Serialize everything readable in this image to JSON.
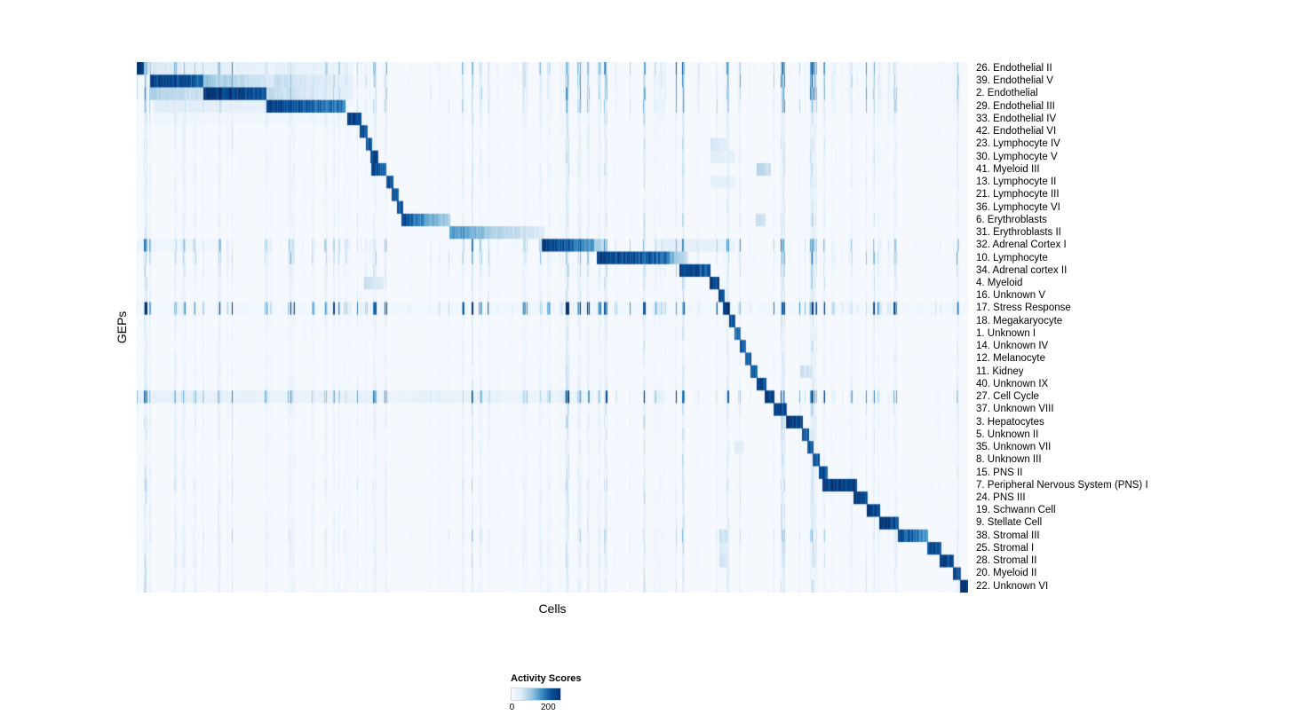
{
  "chart_data": {
    "type": "heatmap",
    "title": "",
    "xlabel": "Cells",
    "ylabel": "GEPs",
    "grid": false,
    "colormap": "Blues",
    "colormap_stops": [
      [
        0.0,
        "#f7fbff"
      ],
      [
        0.2,
        "#deebf7"
      ],
      [
        0.4,
        "#9ecae1"
      ],
      [
        0.6,
        "#4292c6"
      ],
      [
        0.8,
        "#08519c"
      ],
      [
        1.0,
        "#08306b"
      ]
    ],
    "value_range": [
      0,
      200
    ],
    "legend": {
      "title": "Activity Scores",
      "ticks": [
        "0",
        "200"
      ]
    },
    "rows": [
      {
        "label": "26.  Endothelial II",
        "noise": 0.35,
        "segments": [
          [
            0.0,
            0.008,
            1.0,
            0.95
          ],
          [
            0.012,
            0.09,
            0.22,
            0.12
          ],
          [
            0.09,
            0.165,
            0.15,
            0.1
          ],
          [
            0.165,
            0.26,
            0.14,
            0.08
          ]
        ]
      },
      {
        "label": "39.  Endothelial V",
        "noise": 0.3,
        "segments": [
          [
            0.015,
            0.08,
            0.9,
            0.75
          ],
          [
            0.08,
            0.165,
            0.4,
            0.2
          ],
          [
            0.165,
            0.26,
            0.28,
            0.12
          ]
        ]
      },
      {
        "label": "2.  Endothelial",
        "noise": 0.3,
        "segments": [
          [
            0.015,
            0.08,
            0.35,
            0.25
          ],
          [
            0.08,
            0.155,
            0.95,
            0.8
          ],
          [
            0.155,
            0.26,
            0.3,
            0.12
          ]
        ]
      },
      {
        "label": "29.  Endothelial III",
        "noise": 0.25,
        "segments": [
          [
            0.02,
            0.155,
            0.18,
            0.12
          ],
          [
            0.155,
            0.25,
            0.9,
            0.65
          ]
        ]
      },
      {
        "label": "33.  Endothelial IV",
        "noise": 0.15,
        "segments": [
          [
            0.02,
            0.25,
            0.07,
            0.05
          ],
          [
            0.253,
            0.27,
            0.9,
            0.85
          ]
        ]
      },
      {
        "label": "42.  Endothelial VI",
        "noise": 0.12,
        "segments": [
          [
            0.268,
            0.277,
            0.85,
            0.8
          ]
        ]
      },
      {
        "label": "23.  Lymphocyte IV",
        "noise": 0.12,
        "segments": [
          [
            0.275,
            0.283,
            0.8,
            0.75
          ],
          [
            0.69,
            0.712,
            0.22,
            0.15
          ]
        ]
      },
      {
        "label": "30.  Lymphocyte V",
        "noise": 0.12,
        "segments": [
          [
            0.28,
            0.29,
            0.85,
            0.8
          ],
          [
            0.69,
            0.72,
            0.18,
            0.12
          ]
        ]
      },
      {
        "label": "41.  Myeloid III",
        "noise": 0.14,
        "segments": [
          [
            0.282,
            0.3,
            0.88,
            0.65
          ],
          [
            0.745,
            0.762,
            0.35,
            0.25
          ]
        ]
      },
      {
        "label": "13.  Lymphocyte II",
        "noise": 0.12,
        "segments": [
          [
            0.3,
            0.308,
            0.85,
            0.8
          ],
          [
            0.69,
            0.72,
            0.15,
            0.1
          ]
        ]
      },
      {
        "label": "21.  Lymphocyte III",
        "noise": 0.1,
        "segments": [
          [
            0.306,
            0.315,
            0.8,
            0.75
          ]
        ]
      },
      {
        "label": "36.  Lymphocyte VI",
        "noise": 0.1,
        "segments": [
          [
            0.313,
            0.32,
            0.8,
            0.78
          ]
        ]
      },
      {
        "label": "6.  Erythroblasts",
        "noise": 0.12,
        "segments": [
          [
            0.318,
            0.345,
            0.85,
            0.6
          ],
          [
            0.345,
            0.377,
            0.55,
            0.35
          ],
          [
            0.744,
            0.756,
            0.3,
            0.22
          ]
        ]
      },
      {
        "label": "31.  Erythroblasts II",
        "noise": 0.1,
        "segments": [
          [
            0.376,
            0.43,
            0.6,
            0.35
          ],
          [
            0.43,
            0.49,
            0.35,
            0.18
          ]
        ]
      },
      {
        "label": "32.  Adrenal Cortex I",
        "noise": 0.35,
        "segments": [
          [
            0.487,
            0.55,
            0.92,
            0.55
          ],
          [
            0.55,
            0.565,
            0.4,
            0.25
          ],
          [
            0.63,
            0.72,
            0.18,
            0.1
          ],
          [
            0.0,
            0.1,
            0.08,
            0.06
          ]
        ]
      },
      {
        "label": "10.  Lymphocyte",
        "noise": 0.3,
        "segments": [
          [
            0.553,
            0.64,
            0.92,
            0.7
          ],
          [
            0.64,
            0.663,
            0.5,
            0.25
          ]
        ]
      },
      {
        "label": "34.  Adrenal cortex II",
        "noise": 0.18,
        "segments": [
          [
            0.652,
            0.69,
            0.92,
            0.75
          ]
        ]
      },
      {
        "label": "4.  Myeloid",
        "noise": 0.14,
        "segments": [
          [
            0.689,
            0.7,
            0.9,
            0.85
          ],
          [
            0.273,
            0.297,
            0.28,
            0.18
          ]
        ]
      },
      {
        "label": "16.  Unknown V",
        "noise": 0.12,
        "segments": [
          [
            0.699,
            0.707,
            0.85,
            0.8
          ]
        ]
      },
      {
        "label": "17.  Stress Response",
        "noise": 0.65,
        "segments": [
          [
            0.0,
            1.0,
            0.05,
            0.05
          ],
          [
            0.705,
            0.713,
            0.95,
            0.9
          ]
        ]
      },
      {
        "label": "18.  Megakaryocyte",
        "noise": 0.12,
        "segments": [
          [
            0.712,
            0.72,
            0.8,
            0.78
          ]
        ]
      },
      {
        "label": "1.  Unknown I",
        "noise": 0.1,
        "segments": [
          [
            0.719,
            0.726,
            0.72,
            0.7
          ]
        ]
      },
      {
        "label": "14.  Unknown IV",
        "noise": 0.1,
        "segments": [
          [
            0.725,
            0.732,
            0.75,
            0.72
          ]
        ]
      },
      {
        "label": "12.  Melanocyte",
        "noise": 0.1,
        "segments": [
          [
            0.731,
            0.739,
            0.8,
            0.76
          ]
        ]
      },
      {
        "label": "11.  Kidney",
        "noise": 0.1,
        "segments": [
          [
            0.738,
            0.746,
            0.8,
            0.76
          ],
          [
            0.798,
            0.812,
            0.28,
            0.2
          ]
        ]
      },
      {
        "label": "40.  Unknown IX",
        "noise": 0.12,
        "segments": [
          [
            0.745,
            0.757,
            0.85,
            0.8
          ]
        ]
      },
      {
        "label": "27.  Cell Cycle",
        "noise": 0.45,
        "segments": [
          [
            0.755,
            0.767,
            0.9,
            0.85
          ],
          [
            0.0,
            0.33,
            0.13,
            0.1
          ],
          [
            0.33,
            0.55,
            0.12,
            0.08
          ]
        ]
      },
      {
        "label": "37.  Unknown VIII",
        "noise": 0.13,
        "segments": [
          [
            0.766,
            0.781,
            0.9,
            0.82
          ]
        ]
      },
      {
        "label": "3.  Hepatocytes",
        "noise": 0.13,
        "segments": [
          [
            0.78,
            0.801,
            0.93,
            0.82
          ]
        ]
      },
      {
        "label": "5.  Unknown II",
        "noise": 0.11,
        "segments": [
          [
            0.8,
            0.808,
            0.8,
            0.76
          ]
        ]
      },
      {
        "label": "35.  Unknown VII",
        "noise": 0.11,
        "segments": [
          [
            0.806,
            0.814,
            0.8,
            0.76
          ],
          [
            0.718,
            0.73,
            0.22,
            0.15
          ]
        ]
      },
      {
        "label": "8.  Unknown III",
        "noise": 0.11,
        "segments": [
          [
            0.813,
            0.821,
            0.8,
            0.76
          ]
        ]
      },
      {
        "label": "15.  PNS II",
        "noise": 0.11,
        "segments": [
          [
            0.82,
            0.831,
            0.85,
            0.8
          ]
        ]
      },
      {
        "label": "7.  Peripheral Nervous System (PNS) I",
        "noise": 0.14,
        "segments": [
          [
            0.824,
            0.866,
            0.95,
            0.85
          ]
        ]
      },
      {
        "label": "24.  PNS III",
        "noise": 0.12,
        "segments": [
          [
            0.862,
            0.879,
            0.9,
            0.82
          ]
        ]
      },
      {
        "label": "19.  Schwann Cell",
        "noise": 0.12,
        "segments": [
          [
            0.878,
            0.894,
            0.9,
            0.82
          ]
        ]
      },
      {
        "label": "9.  Stellate Cell",
        "noise": 0.12,
        "segments": [
          [
            0.893,
            0.916,
            0.93,
            0.8
          ]
        ]
      },
      {
        "label": "38.  Stromal III",
        "noise": 0.18,
        "segments": [
          [
            0.915,
            0.951,
            0.88,
            0.55
          ],
          [
            0.7,
            0.712,
            0.28,
            0.2
          ]
        ]
      },
      {
        "label": "25.  Stromal I",
        "noise": 0.14,
        "segments": [
          [
            0.95,
            0.967,
            0.88,
            0.8
          ],
          [
            0.7,
            0.712,
            0.22,
            0.16
          ]
        ]
      },
      {
        "label": "28.  Stromal II",
        "noise": 0.14,
        "segments": [
          [
            0.965,
            0.982,
            0.88,
            0.8
          ],
          [
            0.7,
            0.712,
            0.26,
            0.18
          ]
        ]
      },
      {
        "label": "20.  Myeloid II",
        "noise": 0.12,
        "segments": [
          [
            0.981,
            0.991,
            0.85,
            0.8
          ]
        ]
      },
      {
        "label": "22.  Unknown VI",
        "noise": 0.12,
        "segments": [
          [
            0.99,
            1.0,
            1.0,
            0.92
          ]
        ]
      }
    ]
  }
}
